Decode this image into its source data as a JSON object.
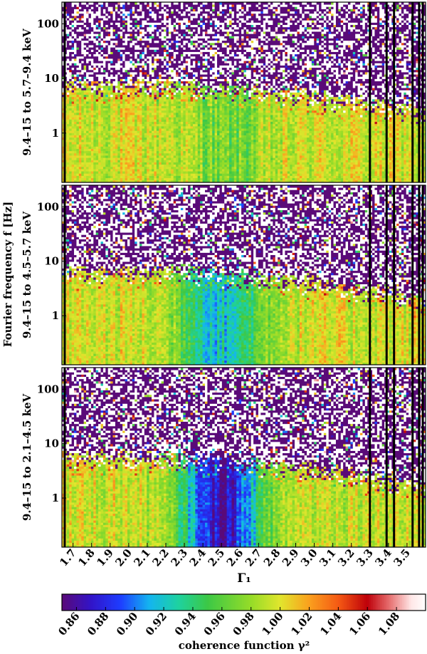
{
  "figure": {
    "y_axis_title": "Fourier frequency f [Hz]",
    "x_axis_title": "Γ₁",
    "colorbar_title": "coherence function γ²"
  },
  "colors": {
    "low": "#5a0a78",
    "mid_blue": "#1e3cff",
    "mid_green": "#3cc846",
    "high_yellow": "#e1e62d",
    "max_red": "#b40000",
    "frame": "#000000",
    "background": "#ffffff"
  },
  "chart_data": [
    {
      "type": "heatmap",
      "panel": "top",
      "title": "9.4–15 to 5.7–9.4 keV",
      "x_range": [
        1.64,
        3.6
      ],
      "y_range": [
        0.125,
        250
      ],
      "y_scale": "log",
      "y_ticks": [
        1,
        10,
        100
      ],
      "y_tick_labels": [
        "1",
        "10",
        "100"
      ],
      "coherent_cutoff_hz": 7,
      "low_coherence_gamma_position": 2.55,
      "low_coherence_depth": 0.03,
      "value_range": [
        0.85,
        1.1
      ]
    },
    {
      "type": "heatmap",
      "panel": "middle",
      "title": "9.4–15 to 4.5–5.7 keV",
      "x_range": [
        1.64,
        3.6
      ],
      "y_range": [
        0.125,
        250
      ],
      "y_scale": "log",
      "y_ticks": [
        1,
        10,
        100
      ],
      "y_tick_labels": [
        "1",
        "10",
        "100"
      ],
      "coherent_cutoff_hz": 6,
      "low_coherence_gamma_position": 2.5,
      "low_coherence_depth": 0.075,
      "value_range": [
        0.85,
        1.1
      ]
    },
    {
      "type": "heatmap",
      "panel": "bottom",
      "title": "9.4–15 to 2.1–4.5 keV",
      "x_range": [
        1.64,
        3.6
      ],
      "y_range": [
        0.125,
        250
      ],
      "y_scale": "log",
      "y_ticks": [
        1,
        10,
        100
      ],
      "y_tick_labels": [
        "1",
        "10",
        "100"
      ],
      "coherent_cutoff_hz": 5,
      "low_coherence_gamma_position": 2.5,
      "low_coherence_depth": 0.13,
      "value_range": [
        0.85,
        1.1
      ]
    },
    {
      "type": "colorbar",
      "xlabel": "coherence function γ²",
      "range": [
        0.85,
        1.1
      ],
      "ticks": [
        0.86,
        0.88,
        0.9,
        0.92,
        0.94,
        0.96,
        0.98,
        1.0,
        1.02,
        1.04,
        1.06,
        1.08
      ],
      "tick_labels": [
        "0.86",
        "0.88",
        "0.90",
        "0.92",
        "0.94",
        "0.96",
        "0.98",
        "1.00",
        "1.02",
        "1.04",
        "1.06",
        "1.08"
      ]
    }
  ],
  "x_axis": {
    "ticks": [
      1.7,
      1.8,
      1.9,
      2.0,
      2.1,
      2.2,
      2.3,
      2.4,
      2.5,
      2.6,
      2.7,
      2.8,
      2.9,
      3.0,
      3.1,
      3.2,
      3.3,
      3.4,
      3.5
    ],
    "tick_labels": [
      "1.7",
      "1.8",
      "1.9",
      "2.0",
      "2.1",
      "2.2",
      "2.3",
      "2.4",
      "2.5",
      "2.6",
      "2.7",
      "2.8",
      "2.9",
      "3.0",
      "3.1",
      "3.2",
      "3.3",
      "3.4",
      "3.5"
    ]
  },
  "gap_columns_gamma": [
    1.655,
    3.3,
    3.39,
    3.43,
    3.53,
    3.565,
    3.585
  ]
}
